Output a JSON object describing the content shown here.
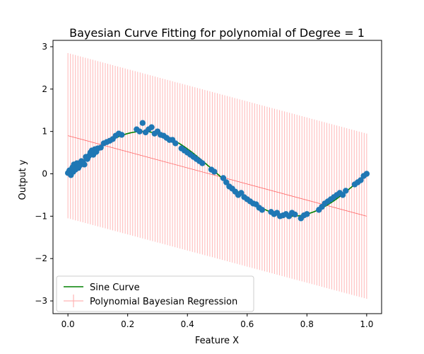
{
  "chart_data": {
    "type": "scatter",
    "title": "Bayesian Curve Fitting for polynomial of Degree = 1",
    "xlabel": "Feature X",
    "ylabel": "Output y",
    "xlim": [
      -0.05,
      1.05
    ],
    "ylim": [
      -3.3,
      3.15
    ],
    "xticks": [
      0.0,
      0.2,
      0.4,
      0.6,
      0.8,
      1.0
    ],
    "xtick_labels": [
      "0.0",
      "0.2",
      "0.4",
      "0.6",
      "0.8",
      "1.0"
    ],
    "yticks": [
      -3,
      -2,
      -1,
      0,
      1,
      2,
      3
    ],
    "ytick_labels": [
      "−3",
      "−2",
      "−1",
      "0",
      "1",
      "2",
      "3"
    ],
    "grid": false,
    "legend": {
      "position": "lower-left",
      "entries": [
        "Sine Curve",
        "Polynomial Bayesian Regression"
      ]
    },
    "series": [
      {
        "name": "Sine Curve",
        "kind": "line",
        "function": "sin(2*pi*x)",
        "x_range": [
          0.0,
          1.0
        ],
        "color": "#008000"
      },
      {
        "name": "Polynomial Bayesian Regression",
        "kind": "errorbar",
        "x_range": [
          0.0,
          1.0
        ],
        "mean_start": 0.9,
        "mean_end": -1.0,
        "std": 1.95,
        "color": "#ff9999"
      },
      {
        "kind": "scatter",
        "color": "#1f77b4",
        "points": [
          [
            0.0,
            0.02
          ],
          [
            0.005,
            0.08
          ],
          [
            0.01,
            -0.03
          ],
          [
            0.015,
            0.15
          ],
          [
            0.018,
            0.05
          ],
          [
            0.02,
            0.22
          ],
          [
            0.025,
            0.1
          ],
          [
            0.03,
            0.25
          ],
          [
            0.035,
            0.14
          ],
          [
            0.04,
            0.2
          ],
          [
            0.045,
            0.3
          ],
          [
            0.05,
            0.28
          ],
          [
            0.055,
            0.22
          ],
          [
            0.06,
            0.4
          ],
          [
            0.065,
            0.35
          ],
          [
            0.07,
            0.42
          ],
          [
            0.075,
            0.5
          ],
          [
            0.08,
            0.55
          ],
          [
            0.085,
            0.45
          ],
          [
            0.09,
            0.58
          ],
          [
            0.095,
            0.52
          ],
          [
            0.1,
            0.6
          ],
          [
            0.11,
            0.62
          ],
          [
            0.12,
            0.72
          ],
          [
            0.13,
            0.75
          ],
          [
            0.14,
            0.78
          ],
          [
            0.15,
            0.82
          ],
          [
            0.16,
            0.9
          ],
          [
            0.17,
            0.95
          ],
          [
            0.18,
            0.92
          ],
          [
            0.23,
            1.05
          ],
          [
            0.24,
            1.0
          ],
          [
            0.25,
            1.2
          ],
          [
            0.26,
            0.98
          ],
          [
            0.27,
            1.05
          ],
          [
            0.28,
            1.1
          ],
          [
            0.29,
            0.95
          ],
          [
            0.3,
            1.0
          ],
          [
            0.31,
            0.92
          ],
          [
            0.32,
            0.9
          ],
          [
            0.33,
            0.85
          ],
          [
            0.34,
            0.8
          ],
          [
            0.35,
            0.8
          ],
          [
            0.36,
            0.72
          ],
          [
            0.38,
            0.6
          ],
          [
            0.39,
            0.55
          ],
          [
            0.4,
            0.5
          ],
          [
            0.41,
            0.45
          ],
          [
            0.42,
            0.4
          ],
          [
            0.43,
            0.35
          ],
          [
            0.44,
            0.3
          ],
          [
            0.45,
            0.25
          ],
          [
            0.48,
            0.1
          ],
          [
            0.49,
            0.05
          ],
          [
            0.52,
            -0.1
          ],
          [
            0.53,
            -0.2
          ],
          [
            0.54,
            -0.3
          ],
          [
            0.55,
            -0.35
          ],
          [
            0.56,
            -0.42
          ],
          [
            0.57,
            -0.5
          ],
          [
            0.58,
            -0.45
          ],
          [
            0.59,
            -0.55
          ],
          [
            0.6,
            -0.6
          ],
          [
            0.61,
            -0.65
          ],
          [
            0.62,
            -0.7
          ],
          [
            0.63,
            -0.72
          ],
          [
            0.64,
            -0.8
          ],
          [
            0.65,
            -0.85
          ],
          [
            0.68,
            -0.9
          ],
          [
            0.69,
            -0.95
          ],
          [
            0.7,
            -0.92
          ],
          [
            0.71,
            -1.0
          ],
          [
            0.72,
            -0.98
          ],
          [
            0.73,
            -0.95
          ],
          [
            0.74,
            -1.0
          ],
          [
            0.75,
            -0.92
          ],
          [
            0.76,
            -0.96
          ],
          [
            0.78,
            -1.05
          ],
          [
            0.79,
            -0.98
          ],
          [
            0.8,
            -0.95
          ],
          [
            0.84,
            -0.85
          ],
          [
            0.85,
            -0.78
          ],
          [
            0.86,
            -0.7
          ],
          [
            0.87,
            -0.65
          ],
          [
            0.88,
            -0.6
          ],
          [
            0.89,
            -0.55
          ],
          [
            0.9,
            -0.5
          ],
          [
            0.91,
            -0.45
          ],
          [
            0.92,
            -0.5
          ],
          [
            0.93,
            -0.4
          ],
          [
            0.96,
            -0.25
          ],
          [
            0.97,
            -0.2
          ],
          [
            0.98,
            -0.15
          ],
          [
            0.99,
            -0.05
          ],
          [
            1.0,
            0.0
          ]
        ]
      }
    ]
  }
}
